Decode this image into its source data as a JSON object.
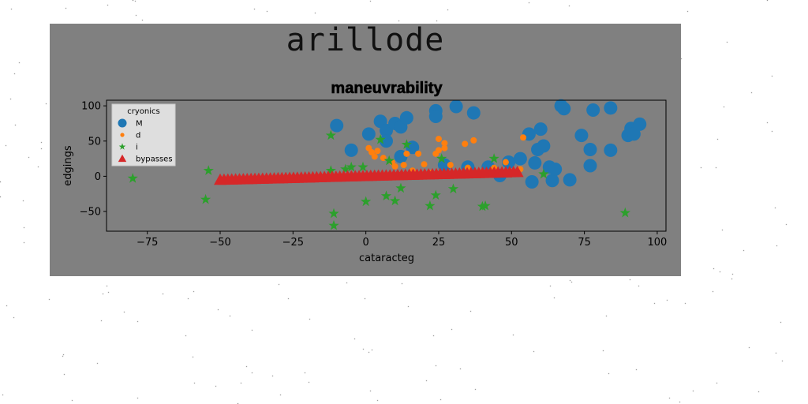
{
  "figure": {
    "heading": "arillode"
  },
  "chart_data": {
    "type": "scatter",
    "title": "maneuvrability",
    "xlabel": "cataracteg",
    "ylabel": "edgings",
    "xlim": [
      -89,
      103
    ],
    "ylim": [
      -78,
      108
    ],
    "xticks": [
      -75,
      -50,
      -25,
      0,
      25,
      50,
      75,
      100
    ],
    "yticks": [
      -50,
      0,
      50,
      100
    ],
    "grid": false,
    "legend": {
      "title": "cryonics",
      "placement": "upper-left"
    },
    "series": [
      {
        "name": "M",
        "marker": "circle",
        "color": "#1f77b4",
        "points": [
          [
            -10,
            72
          ],
          [
            1,
            60
          ],
          [
            5,
            78
          ],
          [
            7,
            65
          ],
          [
            10,
            75
          ],
          [
            12,
            70
          ],
          [
            14,
            83
          ],
          [
            24,
            93
          ],
          [
            24,
            85
          ],
          [
            31,
            99
          ],
          [
            37,
            90
          ],
          [
            -5,
            37
          ],
          [
            7,
            50
          ],
          [
            12,
            28
          ],
          [
            16,
            41
          ],
          [
            27,
            16
          ],
          [
            35,
            13
          ],
          [
            42,
            13
          ],
          [
            46,
            1
          ],
          [
            49,
            20
          ],
          [
            53,
            25
          ],
          [
            56,
            60
          ],
          [
            57,
            -8
          ],
          [
            58,
            19
          ],
          [
            59,
            38
          ],
          [
            60,
            67
          ],
          [
            61,
            43
          ],
          [
            63,
            13
          ],
          [
            64,
            -6
          ],
          [
            65,
            10
          ],
          [
            67,
            100
          ],
          [
            68,
            96
          ],
          [
            70,
            -5
          ],
          [
            74,
            58
          ],
          [
            77,
            38
          ],
          [
            77,
            15
          ],
          [
            78,
            94
          ],
          [
            84,
            97
          ],
          [
            84,
            37
          ],
          [
            90,
            58
          ],
          [
            91,
            68
          ],
          [
            92,
            60
          ],
          [
            94,
            74
          ]
        ]
      },
      {
        "name": "d",
        "marker": "dot",
        "color": "#ff7f0e",
        "points": [
          [
            1,
            40
          ],
          [
            2,
            34
          ],
          [
            3,
            28
          ],
          [
            4,
            36
          ],
          [
            6,
            26
          ],
          [
            9,
            20
          ],
          [
            10,
            14
          ],
          [
            13,
            16
          ],
          [
            14,
            32
          ],
          [
            16,
            8
          ],
          [
            18,
            32
          ],
          [
            20,
            17
          ],
          [
            22,
            5
          ],
          [
            24,
            32
          ],
          [
            25,
            37
          ],
          [
            25,
            53
          ],
          [
            27,
            40
          ],
          [
            27,
            47
          ],
          [
            29,
            16
          ],
          [
            34,
            46
          ],
          [
            35,
            12
          ],
          [
            37,
            51
          ],
          [
            40,
            6
          ],
          [
            44,
            12
          ],
          [
            48,
            20
          ],
          [
            53,
            10
          ],
          [
            54,
            55
          ]
        ]
      },
      {
        "name": "i",
        "marker": "star",
        "color": "#2ca02c",
        "points": [
          [
            -80,
            -3
          ],
          [
            -55,
            -33
          ],
          [
            -54,
            8
          ],
          [
            -12,
            58
          ],
          [
            -12,
            8
          ],
          [
            -11,
            -53
          ],
          [
            -11,
            -70
          ],
          [
            -7,
            10
          ],
          [
            -5,
            13
          ],
          [
            -1,
            13
          ],
          [
            0,
            -36
          ],
          [
            5,
            52
          ],
          [
            7,
            -28
          ],
          [
            8,
            22
          ],
          [
            10,
            -35
          ],
          [
            12,
            -17
          ],
          [
            14,
            45
          ],
          [
            22,
            -42
          ],
          [
            24,
            -27
          ],
          [
            26,
            25
          ],
          [
            30,
            -18
          ],
          [
            40,
            -43
          ],
          [
            41,
            -42
          ],
          [
            44,
            25
          ],
          [
            61,
            3
          ],
          [
            89,
            -52
          ]
        ]
      },
      {
        "name": "bypasses",
        "marker": "triangle",
        "color": "#d62728",
        "x_range": [
          -50,
          52
        ],
        "y_range": [
          -5,
          6
        ],
        "count": 78
      }
    ]
  }
}
